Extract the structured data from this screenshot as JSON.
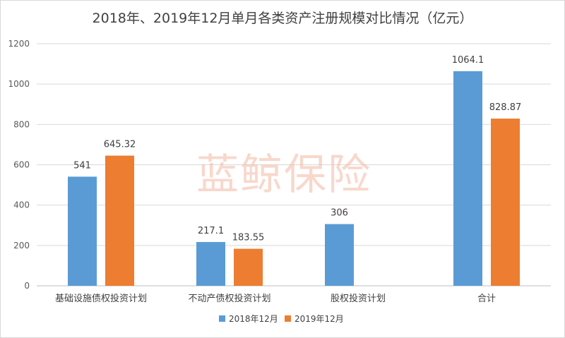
{
  "watermark": "蓝鲸保险",
  "chart_data": {
    "type": "bar",
    "title": "2018年、2019年12月单月各类资产注册规模对比情况（亿元）",
    "categories": [
      "基础设施债权投资计划",
      "不动产债权投资计划",
      "股权投资计划",
      "合计"
    ],
    "series": [
      {
        "name": "2018年12月",
        "color": "#5b9bd5",
        "values": [
          541,
          217.1,
          306,
          1064.1
        ],
        "labels": [
          "541",
          "217.1",
          "306",
          "1064.1"
        ]
      },
      {
        "name": "2019年12月",
        "color": "#ed7d31",
        "values": [
          645.32,
          183.55,
          null,
          828.87
        ],
        "labels": [
          "645.32",
          "183.55",
          "",
          "828.87"
        ]
      }
    ],
    "ylim": [
      0,
      1200
    ],
    "yticks": [
      "0",
      "200",
      "400",
      "600",
      "800",
      "1000",
      "1200"
    ],
    "grid": true,
    "legend_position": "bottom"
  }
}
